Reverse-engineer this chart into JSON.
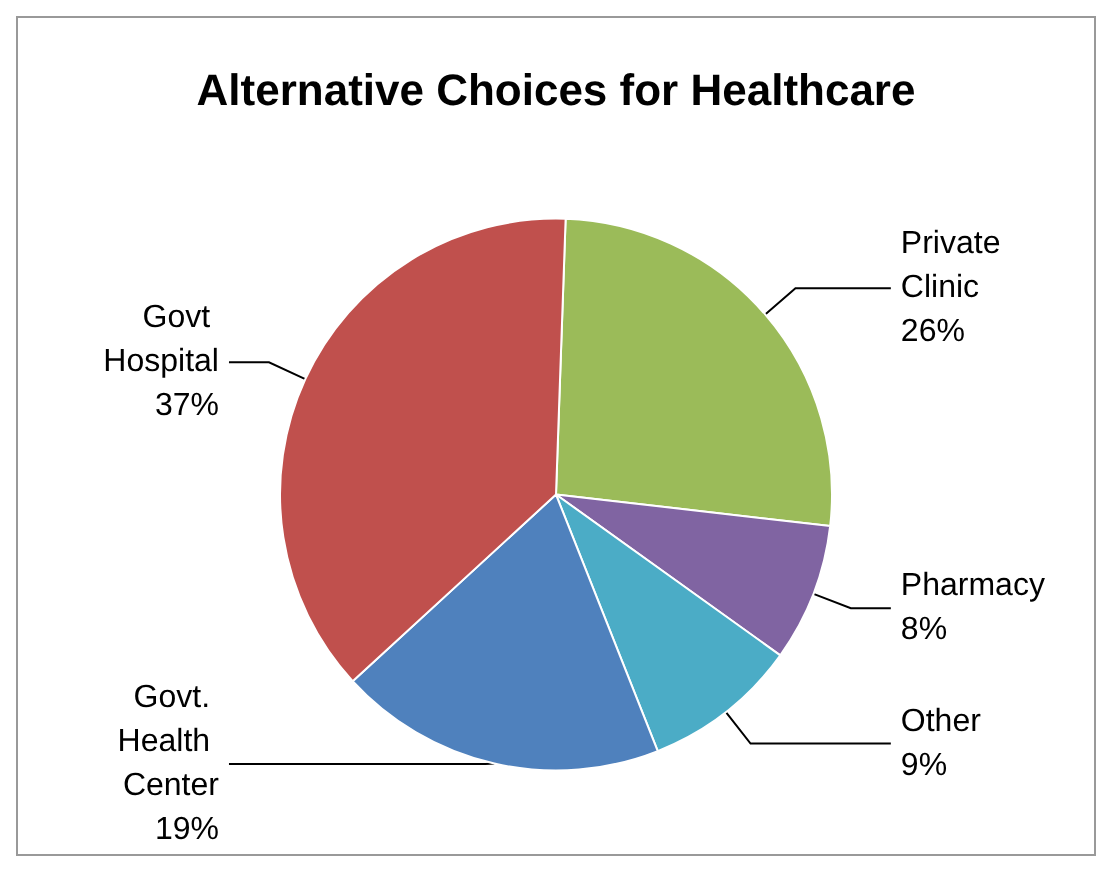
{
  "chart_data": {
    "type": "pie",
    "title": "Alternative Choices for Healthcare",
    "categories": [
      "Private Clinic",
      "Pharmacy",
      "Other",
      "Govt. Health Center",
      "Govt Hospital"
    ],
    "values": [
      26,
      8,
      9,
      19,
      37
    ],
    "colors": [
      "#9bbb59",
      "#8064a2",
      "#4bacc6",
      "#4f81bd",
      "#c0504d"
    ],
    "value_labels": [
      "26%",
      "8%",
      "9%",
      "19%",
      "37%"
    ],
    "legend": false
  }
}
